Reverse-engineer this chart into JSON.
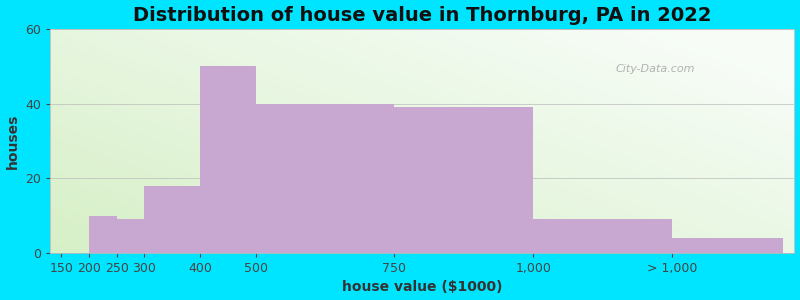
{
  "title": "Distribution of house value in Thornburg, PA in 2022",
  "xlabel": "house value ($1000)",
  "ylabel": "houses",
  "bar_values": [
    0,
    10,
    9,
    18,
    50,
    40,
    39,
    9,
    4
  ],
  "bar_lefts": [
    150,
    200,
    250,
    300,
    400,
    500,
    750,
    1000,
    1250
  ],
  "bar_rights": [
    200,
    250,
    300,
    400,
    500,
    750,
    1000,
    1250,
    1450
  ],
  "bar_color": "#c8a8d0",
  "bar_edgecolor": "none",
  "ylim": [
    0,
    60
  ],
  "yticks": [
    0,
    20,
    40,
    60
  ],
  "xtick_positions": [
    150,
    200,
    250,
    300,
    400,
    500,
    750,
    1000,
    1250
  ],
  "xtick_labels": [
    "150",
    "200",
    "250",
    "300",
    "400",
    "500",
    "750",
    "1,000",
    "> 1,000"
  ],
  "bg_outer": "#00e5ff",
  "bg_inner": "#d8f0c8",
  "title_fontsize": 14,
  "axis_label_fontsize": 10,
  "tick_fontsize": 9,
  "watermark": "City-Data.com",
  "xlim_left": 130,
  "xlim_right": 1470
}
